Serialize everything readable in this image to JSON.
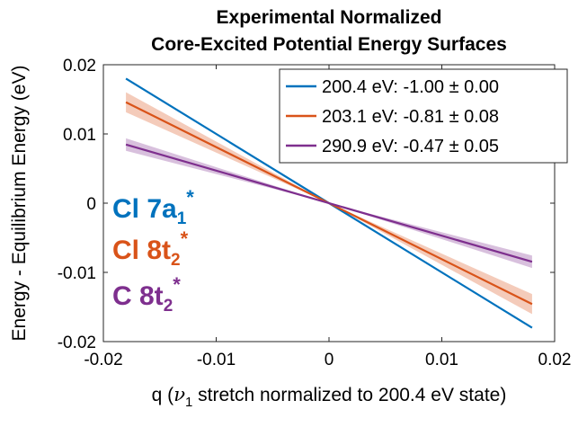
{
  "chart_data": {
    "type": "line",
    "title": [
      "Experimental Normalized",
      "Core-Excited Potential Energy Surfaces"
    ],
    "xlabel": "q (ν1 stretch normalized to 200.4 eV state)",
    "xlabel_parts": {
      "before": "q (",
      "symbol": "ν",
      "sub": "1",
      "after": " stretch normalized to 200.4 eV state)"
    },
    "ylabel": "Energy - Equilibrium Energy (eV)",
    "xlim": [
      -0.02,
      0.02
    ],
    "ylim": [
      -0.02,
      0.02
    ],
    "xticks": [
      -0.02,
      -0.01,
      0,
      0.01,
      0.02
    ],
    "xtick_labels": [
      "-0.02",
      "-0.01",
      "0",
      "0.01",
      "0.02"
    ],
    "yticks": [
      -0.02,
      -0.01,
      0,
      0.01,
      0.02
    ],
    "ytick_labels": [
      "-0.02",
      "-0.01",
      "0",
      "0.01",
      "0.02"
    ],
    "grid": false,
    "legend_position": "top-right",
    "series": [
      {
        "name": "200.4 eV: -1.00 ± 0.00",
        "slope": -1.0,
        "uncertainty": 0.0,
        "x": [
          -0.018,
          0.018
        ],
        "color": "#0072BD"
      },
      {
        "name": "203.1 eV: -0.81 ± 0.08",
        "slope": -0.81,
        "uncertainty": 0.08,
        "x": [
          -0.018,
          0.018
        ],
        "color": "#D95319"
      },
      {
        "name": "290.9 eV: -0.47 ± 0.05",
        "slope": -0.47,
        "uncertainty": 0.05,
        "x": [
          -0.018,
          0.018
        ],
        "color": "#7E2F8E"
      }
    ],
    "annotations": [
      {
        "text": "Cl 7a",
        "sub": "1",
        "sup": "*",
        "color": "#0072BD"
      },
      {
        "text": "Cl 8t",
        "sub": "2",
        "sup": "*",
        "color": "#D95319"
      },
      {
        "text": "C 8t",
        "sub": "2",
        "sup": "*",
        "color": "#7E2F8E"
      }
    ]
  }
}
